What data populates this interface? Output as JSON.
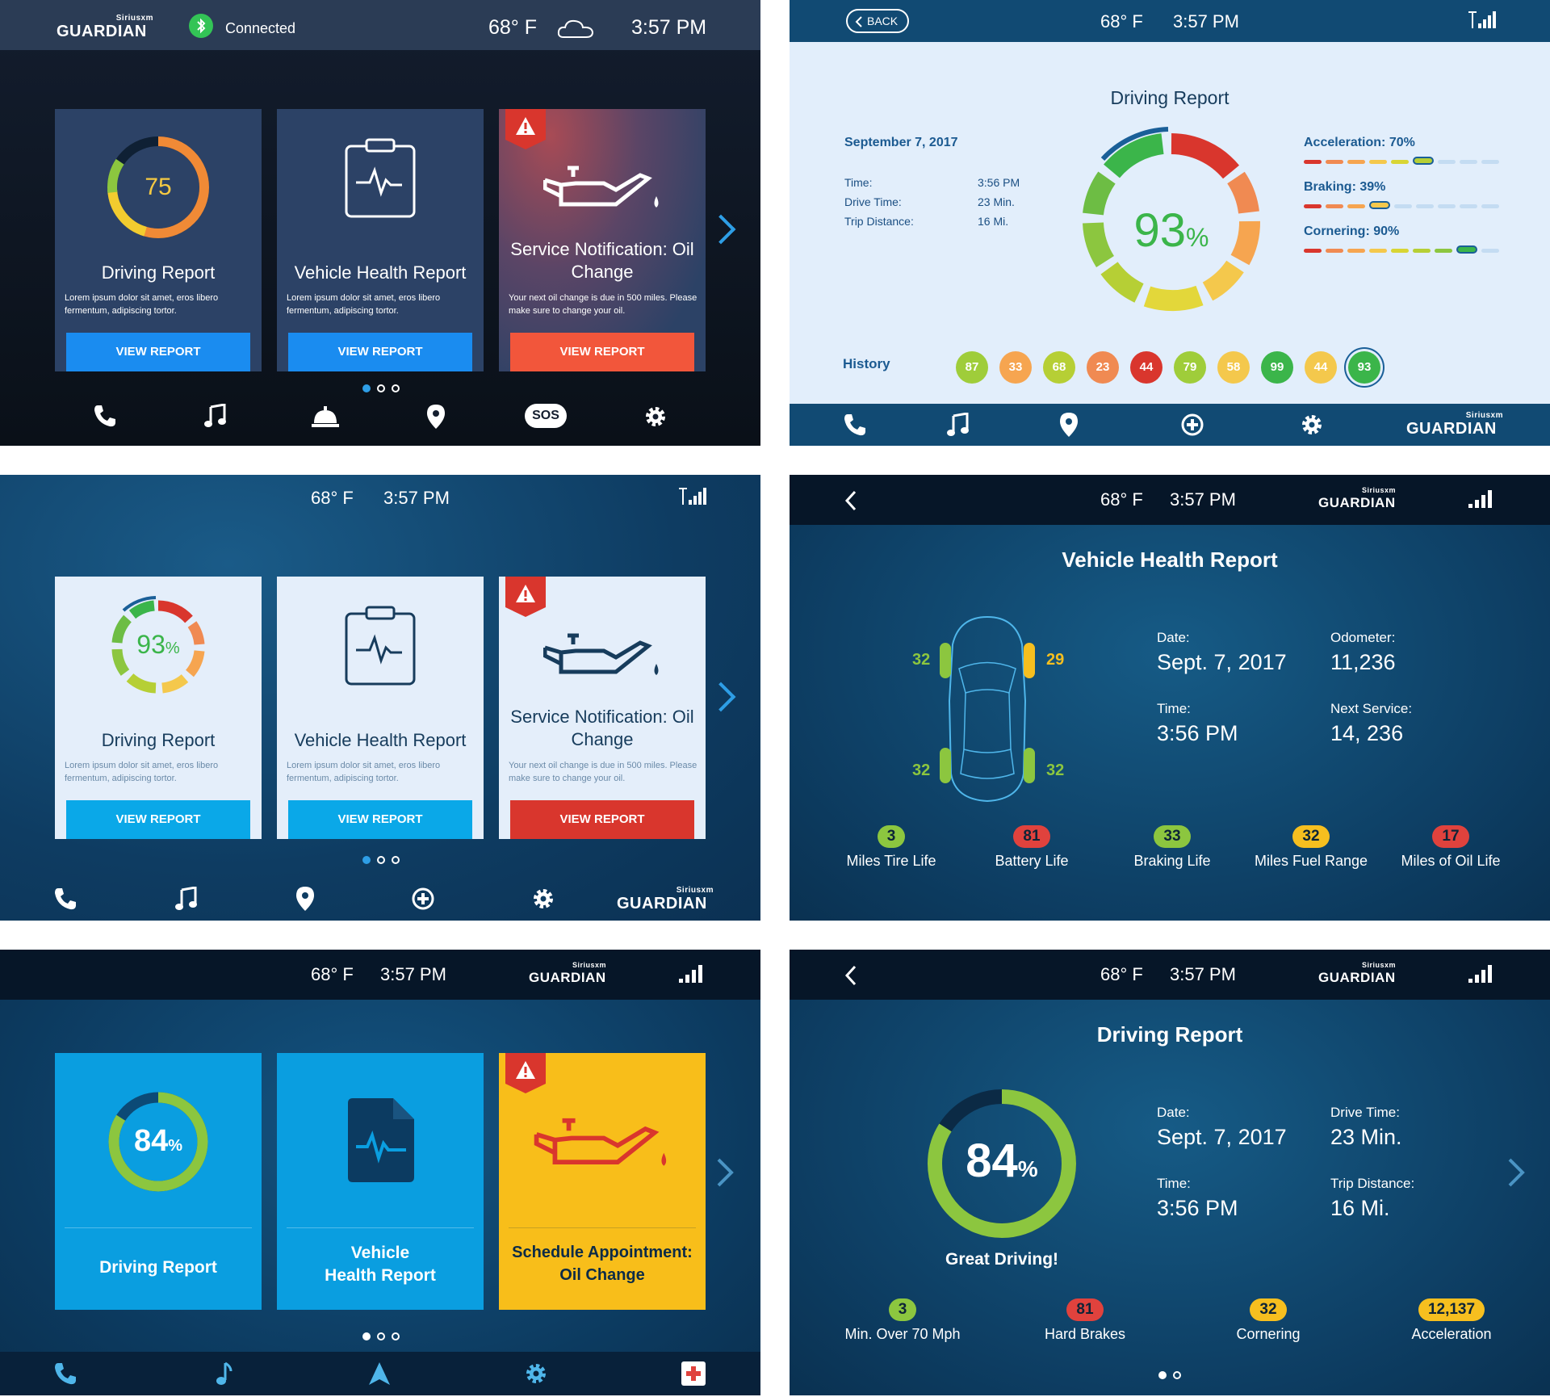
{
  "brand": {
    "small": "Siriusxm",
    "name": "GUARDIAN"
  },
  "status": {
    "temperature": "68° F",
    "time": "3:57 PM"
  },
  "panel1": {
    "connection": "Connected",
    "cards": [
      {
        "score": "75",
        "title": "Driving Report",
        "desc": "Lorem ipsum dolor sit amet, eros libero fermentum, adipiscing tortor.",
        "button": "VIEW REPORT"
      },
      {
        "title": "Vehicle Health Report",
        "desc": "Lorem ipsum dolor sit amet, eros libero fermentum, adipiscing tortor.",
        "button": "VIEW REPORT"
      },
      {
        "title": "Service Notification: Oil Change",
        "desc": "Your next oil change is due in 500 miles. Please make sure to change your oil.",
        "button": "VIEW REPORT"
      }
    ],
    "sos": "SOS",
    "colors": {
      "accent": "#1a8cf0",
      "alert": "#f2563b"
    }
  },
  "panel2": {
    "back": "BACK",
    "title": "Driving Report",
    "date": "September 7, 2017",
    "rows": [
      {
        "label": "Time:",
        "value": "3:56 PM"
      },
      {
        "label": "Drive Time:",
        "value": "23 Min."
      },
      {
        "label": "Trip Distance:",
        "value": "16 Mi."
      }
    ],
    "score": "93",
    "score_unit": "%",
    "metrics": [
      {
        "label": "Acceleration: 70%",
        "value": 70
      },
      {
        "label": "Braking: 39%",
        "value": 39
      },
      {
        "label": "Cornering: 90%",
        "value": 90
      }
    ],
    "history_label": "History",
    "history": [
      "87",
      "33",
      "68",
      "23",
      "44",
      "79",
      "58",
      "99",
      "44",
      "93"
    ]
  },
  "panel3": {
    "cards": [
      {
        "score": "93",
        "unit": "%",
        "title": "Driving Report",
        "desc": "Lorem ipsum dolor sit amet, eros libero fermentum, adipiscing tortor.",
        "button": "VIEW REPORT"
      },
      {
        "title": "Vehicle Health Report",
        "desc": "Lorem ipsum dolor sit amet, eros libero fermentum, adipiscing tortor.",
        "button": "VIEW REPORT"
      },
      {
        "title": "Service Notification: Oil Change",
        "desc": "Your next oil change is due in 500 miles. Please make sure to change your oil.",
        "button": "VIEW REPORT"
      }
    ]
  },
  "panel4": {
    "title": "Vehicle Health Report",
    "tires": {
      "front_left": "32",
      "front_right": "29",
      "rear_left": "32",
      "rear_right": "32"
    },
    "info": [
      {
        "label": "Date:",
        "value": "Sept. 7, 2017"
      },
      {
        "label": "Odometer:",
        "value": "11,236"
      },
      {
        "label": "Time:",
        "value": "3:56 PM"
      },
      {
        "label": "Next Service:",
        "value": "14, 236"
      }
    ],
    "stats": [
      {
        "value": "3",
        "label": "Miles Tire Life",
        "color": "#8cc63f"
      },
      {
        "value": "81",
        "label": "Battery Life",
        "color": "#e0423d"
      },
      {
        "value": "33",
        "label": "Braking Life",
        "color": "#8cc63f"
      },
      {
        "value": "32",
        "label": "Miles Fuel Range",
        "color": "#f6bf1f"
      },
      {
        "value": "17",
        "label": "Miles of Oil Life",
        "color": "#e0423d"
      }
    ]
  },
  "panel5": {
    "cards": [
      {
        "score": "84",
        "unit": "%",
        "title": "Driving Report"
      },
      {
        "title_line1": "Vehicle",
        "title_line2": "Health Report"
      },
      {
        "title_line1": "Schedule Appointment:",
        "title_line2": "Oil Change"
      }
    ]
  },
  "panel6": {
    "title": "Driving Report",
    "score": "84",
    "unit": "%",
    "caption": "Great Driving!",
    "score_value": 84,
    "info": [
      {
        "label": "Date:",
        "value": "Sept. 7, 2017"
      },
      {
        "label": "Drive Time:",
        "value": "23 Min."
      },
      {
        "label": "Time:",
        "value": "3:56 PM"
      },
      {
        "label": "Trip Distance:",
        "value": "16 Mi."
      }
    ],
    "stats": [
      {
        "value": "3",
        "label": "Min. Over 70 Mph",
        "color": "#8cc63f"
      },
      {
        "value": "81",
        "label": "Hard Brakes",
        "color": "#e0423d"
      },
      {
        "value": "32",
        "label": "Cornering",
        "color": "#f6bf1f"
      },
      {
        "value": "12,137",
        "label": "Acceleration",
        "color": "#f6bf1f"
      }
    ]
  }
}
